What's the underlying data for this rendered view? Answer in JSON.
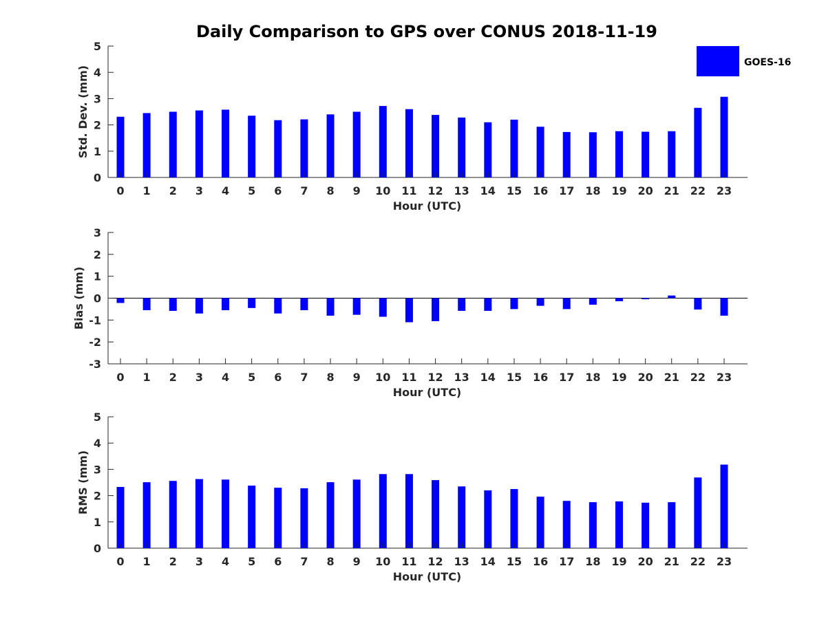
{
  "title": "Daily Comparison to GPS over CONUS 2018-11-19",
  "colors": {
    "bar": "#0000ff",
    "axis": "#262626"
  },
  "legend": {
    "label": "GOES-16",
    "position": "top-right"
  },
  "chart_data": [
    {
      "type": "bar",
      "title": "Daily Comparison to GPS over CONUS 2018-11-19",
      "xlabel": "Hour (UTC)",
      "ylabel": "Std. Dev. (mm)",
      "ylim": [
        0,
        5
      ],
      "yticks": [
        0,
        1,
        2,
        3,
        4,
        5
      ],
      "categories": [
        0,
        1,
        2,
        3,
        4,
        5,
        6,
        7,
        8,
        9,
        10,
        11,
        12,
        13,
        14,
        15,
        16,
        17,
        18,
        19,
        20,
        21,
        22,
        23
      ],
      "series": [
        {
          "name": "GOES-16",
          "values": [
            2.31,
            2.45,
            2.5,
            2.55,
            2.58,
            2.35,
            2.18,
            2.21,
            2.4,
            2.5,
            2.72,
            2.6,
            2.38,
            2.28,
            2.1,
            2.2,
            1.93,
            1.73,
            1.72,
            1.76,
            1.74,
            1.76,
            2.65,
            3.07
          ]
        }
      ]
    },
    {
      "type": "bar",
      "xlabel": "Hour (UTC)",
      "ylabel": "Bias (mm)",
      "ylim": [
        -3,
        3
      ],
      "yticks": [
        -3,
        -2,
        -1,
        0,
        1,
        2,
        3
      ],
      "categories": [
        0,
        1,
        2,
        3,
        4,
        5,
        6,
        7,
        8,
        9,
        10,
        11,
        12,
        13,
        14,
        15,
        16,
        17,
        18,
        19,
        20,
        21,
        22,
        23
      ],
      "series": [
        {
          "name": "GOES-16",
          "values": [
            -0.22,
            -0.55,
            -0.58,
            -0.7,
            -0.55,
            -0.45,
            -0.7,
            -0.55,
            -0.8,
            -0.76,
            -0.85,
            -1.1,
            -1.05,
            -0.58,
            -0.58,
            -0.5,
            -0.35,
            -0.5,
            -0.3,
            -0.14,
            -0.05,
            0.12,
            -0.52,
            -0.8
          ]
        }
      ]
    },
    {
      "type": "bar",
      "xlabel": "Hour (UTC)",
      "ylabel": "RMS (mm)",
      "ylim": [
        0,
        5
      ],
      "yticks": [
        0,
        1,
        2,
        3,
        4,
        5
      ],
      "categories": [
        0,
        1,
        2,
        3,
        4,
        5,
        6,
        7,
        8,
        9,
        10,
        11,
        12,
        13,
        14,
        15,
        16,
        17,
        18,
        19,
        20,
        21,
        22,
        23
      ],
      "series": [
        {
          "name": "GOES-16",
          "values": [
            2.33,
            2.51,
            2.56,
            2.63,
            2.61,
            2.38,
            2.3,
            2.28,
            2.51,
            2.61,
            2.82,
            2.82,
            2.59,
            2.35,
            2.2,
            2.25,
            1.96,
            1.8,
            1.75,
            1.78,
            1.73,
            1.75,
            2.69,
            3.18
          ]
        }
      ]
    }
  ]
}
